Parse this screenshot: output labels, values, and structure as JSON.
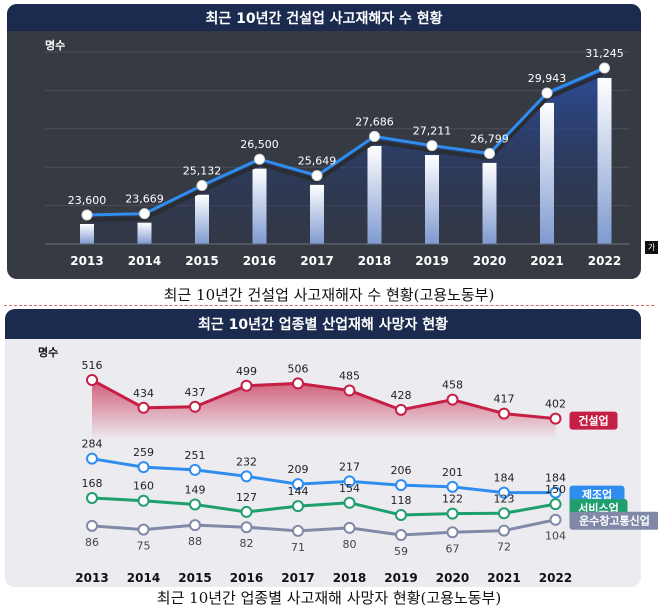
{
  "captions": {
    "top": "최근 10년간 건설업 사고재해자 수 현황(고용노동부)",
    "bottom": "최근 10년간 업종별 사고재해 사망자 현황(고용노동부)"
  },
  "corner_mark": "가",
  "colors": {
    "panel": "#363a43",
    "title_bar": "#1b2b4f",
    "series_line": "#2f8df0",
    "construction": "#c61f45",
    "manufacturing": "#2f8df0",
    "service": "#1f9e6e",
    "transport": "#8089a8"
  },
  "chart_data": [
    {
      "type": "line",
      "title": "최근 10년간 건설업 사고재해자 수 현황",
      "ylabel": "명수",
      "x": [
        "2013",
        "2014",
        "2015",
        "2016",
        "2017",
        "2018",
        "2019",
        "2020",
        "2021",
        "2022"
      ],
      "series": [
        {
          "values": [
            23600,
            23669,
            25132,
            26500,
            25649,
            27686,
            27211,
            26799,
            29943,
            31245
          ],
          "labels": [
            "23,600",
            "23,669",
            "25,132",
            "26,500",
            "25,649",
            "27,686",
            "27,211",
            "26,799",
            "29,943",
            "31,245"
          ]
        }
      ],
      "grid": true
    },
    {
      "type": "line",
      "title": "최근 10년간 업종별 산업재해 사망자 현황",
      "ylabel": "명수",
      "x": [
        "2013",
        "2014",
        "2015",
        "2016",
        "2017",
        "2018",
        "2019",
        "2020",
        "2021",
        "2022"
      ],
      "series": [
        {
          "name": "건설업",
          "values": [
            516,
            434,
            437,
            499,
            506,
            485,
            428,
            458,
            417,
            402
          ]
        },
        {
          "name": "제조업",
          "values": [
            284,
            259,
            251,
            232,
            209,
            217,
            206,
            201,
            184,
            184
          ]
        },
        {
          "name": "서비스업",
          "values": [
            168,
            160,
            149,
            127,
            144,
            154,
            118,
            122,
            123,
            150
          ]
        },
        {
          "name": "운수창고통신업",
          "values": [
            86,
            75,
            88,
            82,
            71,
            80,
            59,
            67,
            72,
            104
          ]
        }
      ],
      "grid": false
    }
  ]
}
